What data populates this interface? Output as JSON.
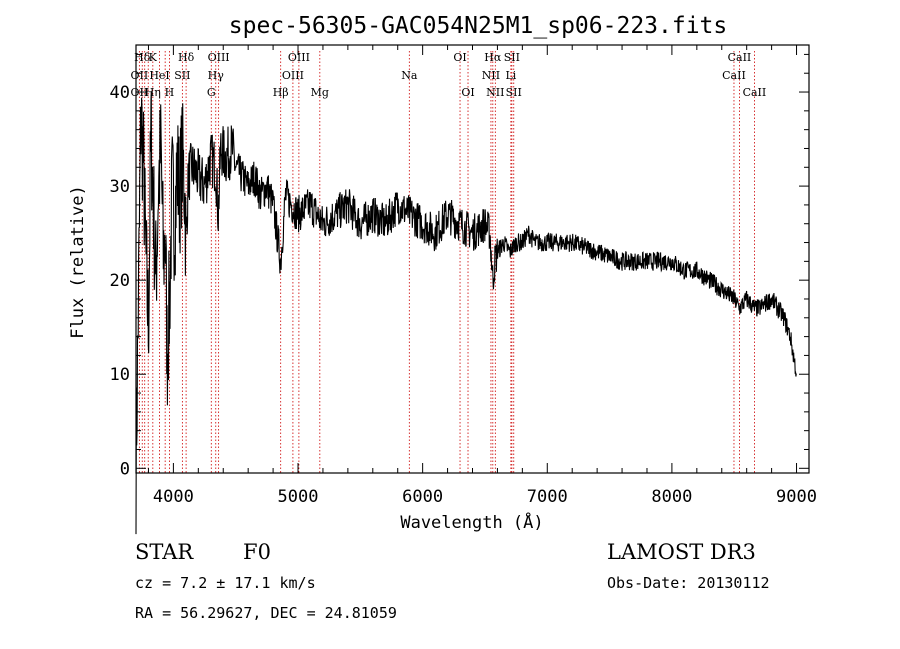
{
  "chart_data": {
    "type": "line",
    "title": "spec-56305-GAC054N25M1_sp06-223.fits",
    "xlabel": "Wavelength (Å)",
    "ylabel": "Flux (relative)",
    "xlim": [
      3700,
      9100
    ],
    "ylim": [
      -0.5,
      45
    ],
    "xticks": [
      4000,
      5000,
      6000,
      7000,
      8000,
      9000
    ],
    "xtick_labels": [
      "4000",
      "5000",
      "6000",
      "7000",
      "8000",
      "9000"
    ],
    "yticks": [
      0,
      10,
      20,
      30,
      40
    ],
    "ytick_labels": [
      "0",
      "10",
      "20",
      "30",
      "40"
    ],
    "spectrum": {
      "wavelength": [
        3700,
        3720,
        3740,
        3760,
        3780,
        3800,
        3820,
        3840,
        3860,
        3880,
        3900,
        3920,
        3935,
        3950,
        3970,
        3990,
        4010,
        4030,
        4050,
        4070,
        4090,
        4101,
        4120,
        4150,
        4200,
        4250,
        4300,
        4340,
        4360,
        4380,
        4420,
        4470,
        4500,
        4550,
        4600,
        4650,
        4700,
        4750,
        4800,
        4861,
        4900,
        4950,
        5000,
        5100,
        5200,
        5300,
        5400,
        5500,
        5600,
        5700,
        5800,
        5900,
        6000,
        6100,
        6200,
        6300,
        6400,
        6500,
        6540,
        6563,
        6580,
        6600,
        6650,
        6700,
        6750,
        6800,
        6850,
        6900,
        7000,
        7200,
        7400,
        7600,
        7800,
        8000,
        8100,
        8200,
        8300,
        8400,
        8500,
        8542,
        8600,
        8662,
        8700,
        8800,
        8900,
        8950,
        9000
      ],
      "flux": [
        0,
        18,
        38,
        32,
        22,
        15,
        36,
        28,
        20,
        30,
        34,
        22,
        25,
        12,
        18,
        30,
        26,
        32,
        29,
        33,
        30,
        24,
        31,
        32,
        31,
        30,
        33,
        32,
        27,
        34,
        33,
        34,
        32,
        31,
        30,
        31,
        29,
        30,
        28,
        22,
        29,
        28,
        27,
        28,
        26,
        27,
        28,
        26,
        27,
        26,
        28,
        27,
        26,
        25,
        27,
        26,
        25,
        26,
        25,
        20,
        22,
        23,
        24,
        23,
        24,
        24,
        25,
        24,
        24,
        24,
        23,
        22,
        22,
        22,
        21,
        21,
        20,
        19,
        18,
        17,
        18,
        17,
        17,
        18,
        16,
        14,
        10
      ]
    },
    "lines": [
      {
        "label": "Hδ",
        "wl": 3750,
        "row": 0
      },
      {
        "label": "K",
        "wl": 3834,
        "row": 0
      },
      {
        "label": "Hδ",
        "wl": 4102,
        "row": 0
      },
      {
        "label": "OIII",
        "wl": 4363,
        "row": 0
      },
      {
        "label": "OIII",
        "wl": 5007,
        "row": 0
      },
      {
        "label": "OI",
        "wl": 6300,
        "row": 0
      },
      {
        "label": "Hα",
        "wl": 6563,
        "row": 0
      },
      {
        "label": "SII",
        "wl": 6716,
        "row": 0
      },
      {
        "label": "CaII",
        "wl": 8542,
        "row": 0
      },
      {
        "label": "OII",
        "wl": 3727,
        "row": 1
      },
      {
        "label": "HeI",
        "wl": 3889,
        "row": 1
      },
      {
        "label": "SII",
        "wl": 4072,
        "row": 1
      },
      {
        "label": "Hγ",
        "wl": 4340,
        "row": 1
      },
      {
        "label": "OIII",
        "wl": 4959,
        "row": 1
      },
      {
        "label": "Na",
        "wl": 5893,
        "row": 1
      },
      {
        "label": "NII",
        "wl": 6548,
        "row": 1
      },
      {
        "label": "Li",
        "wl": 6708,
        "row": 1
      },
      {
        "label": "CaII",
        "wl": 8498,
        "row": 1
      },
      {
        "label": "OII",
        "wl": 3727,
        "row": 2
      },
      {
        "label": "Hη",
        "wl": 3835,
        "row": 2
      },
      {
        "label": "H",
        "wl": 3968,
        "row": 2
      },
      {
        "label": "G",
        "wl": 4304,
        "row": 2
      },
      {
        "label": "Hβ",
        "wl": 4861,
        "row": 2
      },
      {
        "label": "Mg",
        "wl": 5175,
        "row": 2
      },
      {
        "label": "OI",
        "wl": 6364,
        "row": 2
      },
      {
        "label": "NII",
        "wl": 6583,
        "row": 2
      },
      {
        "label": "SII",
        "wl": 6731,
        "row": 2
      },
      {
        "label": "CaII",
        "wl": 8662,
        "row": 2
      }
    ],
    "line_markers": [
      3727,
      3750,
      3770,
      3798,
      3835,
      3889,
      3934,
      3968,
      4072,
      4102,
      4304,
      4340,
      4363,
      4861,
      4959,
      5007,
      5175,
      5893,
      6300,
      6364,
      6548,
      6563,
      6583,
      6708,
      6716,
      6731,
      8498,
      8542,
      8662
    ]
  },
  "info": {
    "class_label": "STAR",
    "subclass": "F0",
    "cz": "cz = 7.2 ± 17.1 km/s",
    "coords": "RA =  56.29627, DEC =  24.81059",
    "survey": "LAMOST DR3",
    "obs_date": "Obs-Date: 20130112"
  },
  "colors": {
    "line_marker": "#cc0000",
    "spectrum": "#000000",
    "axes": "#000000"
  }
}
